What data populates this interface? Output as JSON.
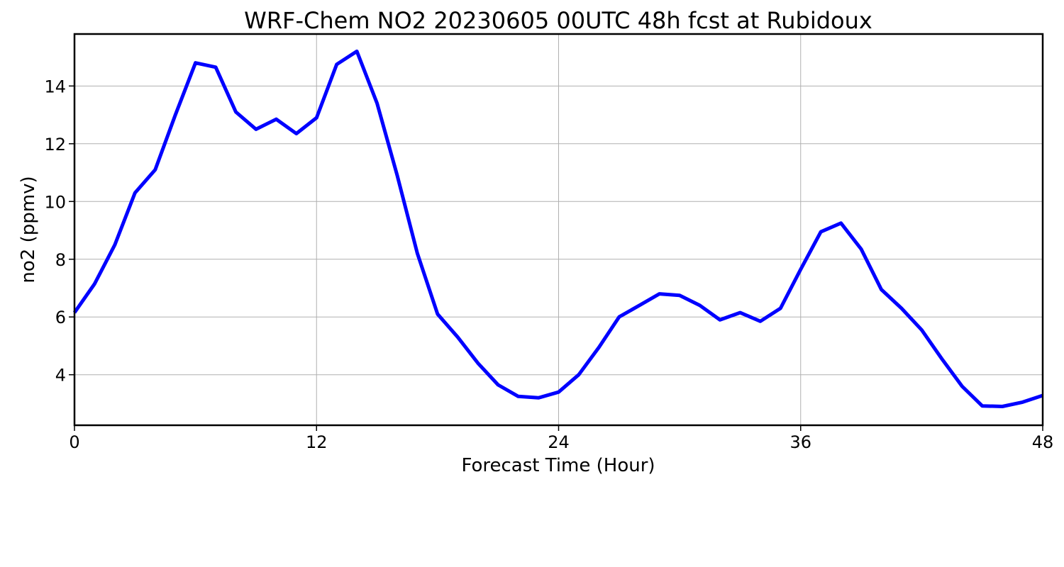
{
  "chart_data": {
    "type": "line",
    "title": "WRF-Chem NO2  20230605 00UTC 48h fcst at Rubidoux",
    "xlabel": "Forecast Time (Hour)",
    "ylabel": "no2  (ppmv)",
    "xlim": [
      0,
      48
    ],
    "ylim": [
      2.25,
      15.8
    ],
    "x_ticks": [
      0,
      12,
      24,
      36,
      48
    ],
    "y_ticks": [
      4,
      6,
      8,
      10,
      12,
      14
    ],
    "grid": true,
    "legend": "none",
    "series": [
      {
        "color": "#0000ff",
        "x": [
          0,
          1,
          2,
          3,
          4,
          5,
          6,
          7,
          8,
          9,
          10,
          11,
          12,
          13,
          14,
          15,
          16,
          17,
          18,
          19,
          20,
          21,
          22,
          23,
          24,
          25,
          26,
          27,
          28,
          29,
          30,
          31,
          32,
          33,
          34,
          35,
          36,
          37,
          38,
          39,
          40,
          41,
          42,
          43,
          44,
          45,
          46,
          47,
          48
        ],
        "values": [
          6.15,
          7.15,
          8.5,
          10.3,
          11.1,
          13.0,
          14.8,
          14.65,
          13.1,
          12.5,
          12.85,
          12.35,
          12.9,
          14.75,
          15.2,
          13.4,
          10.9,
          8.2,
          6.1,
          5.3,
          4.4,
          3.65,
          3.25,
          3.2,
          3.4,
          4.0,
          4.95,
          6.0,
          6.4,
          6.8,
          6.75,
          6.4,
          5.9,
          6.15,
          5.85,
          6.3,
          7.65,
          8.95,
          9.25,
          8.35,
          6.95,
          6.3,
          5.55,
          4.55,
          3.6,
          2.92,
          2.9,
          3.05,
          3.28
        ]
      }
    ]
  }
}
